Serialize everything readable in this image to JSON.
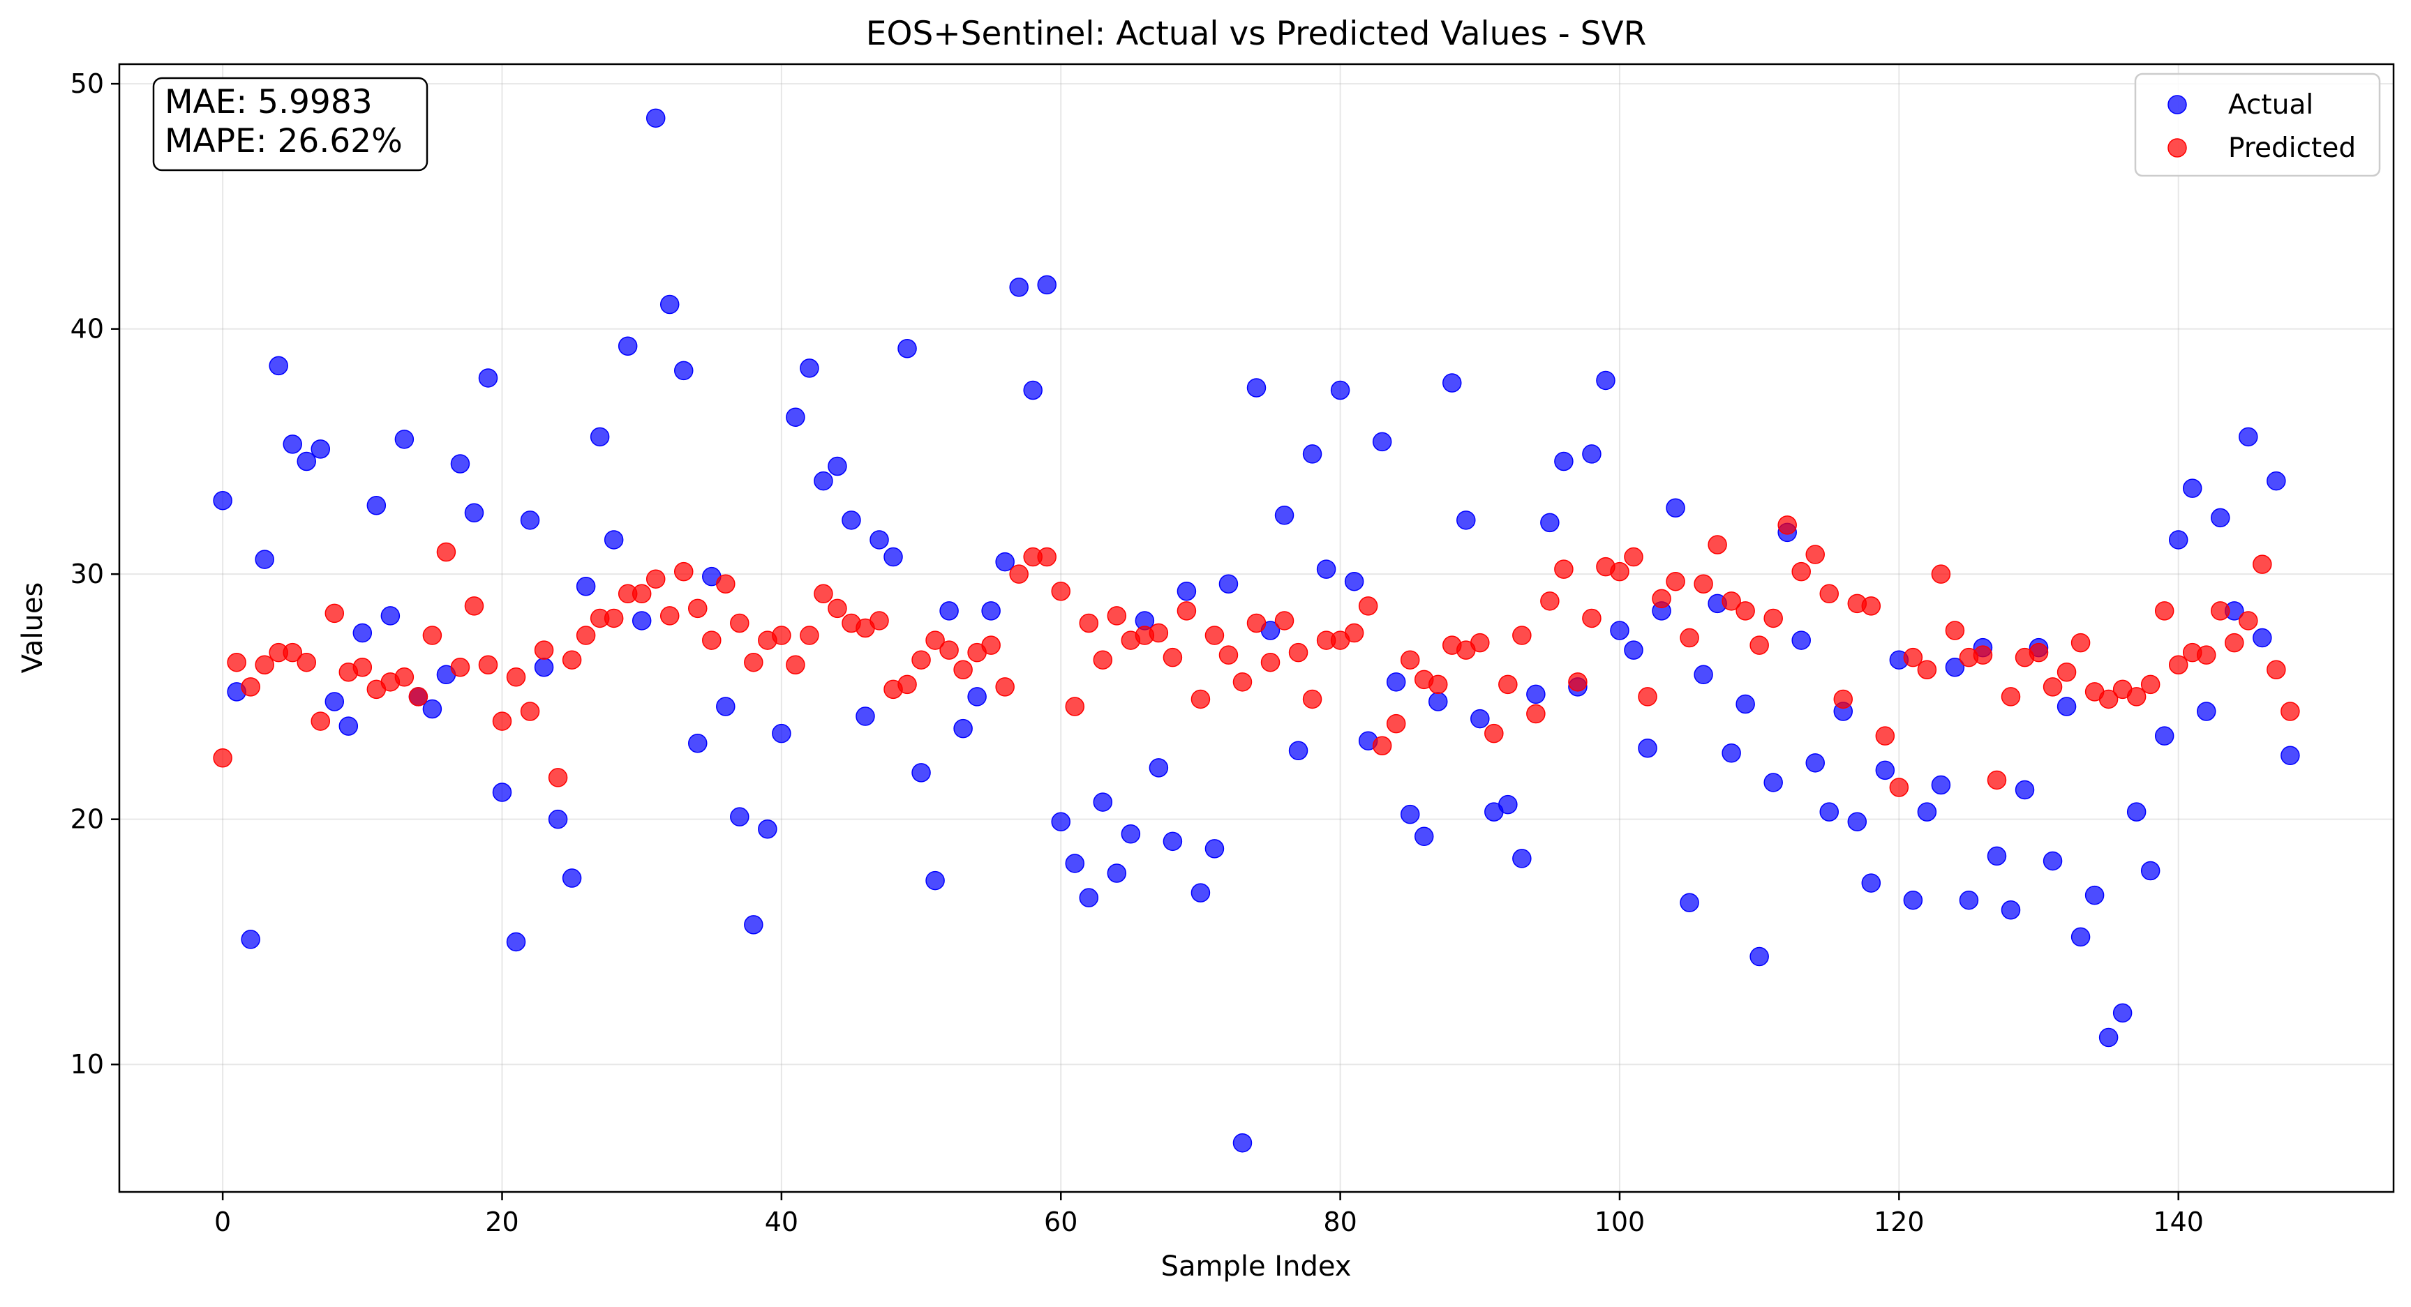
{
  "chart_data": {
    "type": "scatter",
    "title": "EOS+Sentinel: Actual vs Predicted Values - SVR",
    "xlabel": "Sample Index",
    "ylabel": "Values",
    "xlim": [
      -7.4,
      155.4
    ],
    "ylim": [
      4.8,
      50.8
    ],
    "xticks": [
      0,
      20,
      40,
      60,
      80,
      100,
      120,
      140
    ],
    "yticks": [
      10,
      20,
      30,
      40,
      50
    ],
    "grid": true,
    "legend_position": "top-right",
    "annotation": {
      "mae": "MAE: 5.9983",
      "mape": "MAPE: 26.62%"
    },
    "x": [
      0,
      1,
      2,
      3,
      4,
      5,
      6,
      7,
      8,
      9,
      10,
      11,
      12,
      13,
      14,
      15,
      16,
      17,
      18,
      19,
      20,
      21,
      22,
      23,
      24,
      25,
      26,
      27,
      28,
      29,
      30,
      31,
      32,
      33,
      34,
      35,
      36,
      37,
      38,
      39,
      40,
      41,
      42,
      43,
      44,
      45,
      46,
      47,
      48,
      49,
      50,
      51,
      52,
      53,
      54,
      55,
      56,
      57,
      58,
      59,
      60,
      61,
      62,
      63,
      64,
      65,
      66,
      67,
      68,
      69,
      70,
      71,
      72,
      73,
      74,
      75,
      76,
      77,
      78,
      79,
      80,
      81,
      82,
      83,
      84,
      85,
      86,
      87,
      88,
      89,
      90,
      91,
      92,
      93,
      94,
      95,
      96,
      97,
      98,
      99,
      100,
      101,
      102,
      103,
      104,
      105,
      106,
      107,
      108,
      109,
      110,
      111,
      112,
      113,
      114,
      115,
      116,
      117,
      118,
      119,
      120,
      121,
      122,
      123,
      124,
      125,
      126,
      127,
      128,
      129,
      130,
      131,
      132,
      133,
      134,
      135,
      136,
      137,
      138,
      139,
      140,
      141,
      142,
      143,
      144,
      145,
      146,
      147,
      148
    ],
    "series": [
      {
        "name": "Actual",
        "color": "#0000ff",
        "values": [
          33.0,
          25.2,
          15.1,
          30.6,
          38.5,
          35.3,
          34.6,
          35.1,
          24.8,
          23.8,
          27.6,
          32.8,
          28.3,
          35.5,
          25.0,
          24.5,
          25.9,
          34.5,
          32.5,
          38.0,
          21.1,
          15.0,
          32.2,
          26.2,
          20.0,
          17.6,
          29.5,
          35.6,
          31.4,
          39.3,
          28.1,
          48.6,
          41.0,
          38.3,
          23.1,
          29.9,
          24.6,
          20.1,
          15.7,
          19.6,
          23.5,
          36.4,
          38.4,
          33.8,
          34.4,
          32.2,
          24.2,
          31.4,
          30.7,
          39.2,
          21.9,
          17.5,
          28.5,
          23.7,
          25.0,
          28.5,
          30.5,
          41.7,
          37.5,
          41.8,
          19.9,
          18.2,
          16.8,
          20.7,
          17.8,
          19.4,
          28.1,
          22.1,
          19.1,
          29.3,
          17.0,
          18.8,
          29.6,
          6.8,
          37.6,
          27.7,
          32.4,
          22.8,
          34.9,
          30.2,
          37.5,
          29.7,
          23.2,
          35.4,
          25.6,
          20.2,
          19.3,
          24.8,
          37.8,
          32.2,
          24.1,
          20.3,
          20.6,
          18.4,
          25.1,
          32.1,
          34.6,
          25.4,
          34.9,
          37.9,
          27.7,
          26.9,
          22.9,
          28.5,
          32.7,
          16.6,
          25.9,
          28.8,
          22.7,
          24.7,
          14.4,
          21.5,
          31.7,
          27.3,
          22.3,
          20.3,
          24.4,
          19.9,
          17.4,
          22.0,
          26.5,
          16.7,
          20.3,
          21.4,
          26.2,
          16.7,
          27.0,
          18.5,
          16.3,
          21.2,
          27.0,
          18.3,
          24.6,
          15.2,
          16.9,
          11.1,
          12.1,
          20.3,
          17.9,
          23.4,
          31.4,
          33.5,
          24.4,
          32.3,
          28.5,
          35.6,
          27.4,
          33.8,
          22.6
        ]
      },
      {
        "name": "Predicted",
        "color": "#ff0000",
        "values": [
          22.5,
          26.4,
          25.4,
          26.3,
          26.8,
          26.8,
          26.4,
          24.0,
          28.4,
          26.0,
          26.2,
          25.3,
          25.6,
          25.8,
          25.0,
          27.5,
          30.9,
          26.2,
          28.7,
          26.3,
          24.0,
          25.8,
          24.4,
          26.9,
          21.7,
          26.5,
          27.5,
          28.2,
          28.2,
          29.2,
          29.2,
          29.8,
          28.3,
          30.1,
          28.6,
          27.3,
          29.6,
          28.0,
          26.4,
          27.3,
          27.5,
          26.3,
          27.5,
          29.2,
          28.6,
          28.0,
          27.8,
          28.1,
          25.3,
          25.5,
          26.5,
          27.3,
          26.9,
          26.1,
          26.8,
          27.1,
          25.4,
          30.0,
          30.7,
          30.7,
          29.3,
          24.6,
          28.0,
          26.5,
          28.3,
          27.3,
          27.5,
          27.6,
          26.6,
          28.5,
          24.9,
          27.5,
          26.7,
          25.6,
          28.0,
          26.4,
          28.1,
          26.8,
          24.9,
          27.3,
          27.3,
          27.6,
          28.7,
          23.0,
          23.9,
          26.5,
          25.7,
          25.5,
          27.1,
          26.9,
          27.2,
          23.5,
          25.5,
          27.5,
          24.3,
          28.9,
          30.2,
          25.6,
          28.2,
          30.3,
          30.1,
          30.7,
          25.0,
          29.0,
          29.7,
          27.4,
          29.6,
          31.2,
          28.9,
          28.5,
          27.1,
          28.2,
          32.0,
          30.1,
          30.8,
          29.2,
          24.9,
          28.8,
          28.7,
          23.4,
          21.3,
          26.6,
          26.1,
          30.0,
          27.7,
          26.6,
          26.7,
          21.6,
          25.0,
          26.6,
          26.8,
          25.4,
          26.0,
          27.2,
          25.2,
          24.9,
          25.3,
          25.0,
          25.5,
          28.5,
          26.3,
          26.8,
          26.7,
          28.5,
          27.2,
          28.1,
          30.4,
          26.1,
          24.4
        ]
      }
    ]
  }
}
